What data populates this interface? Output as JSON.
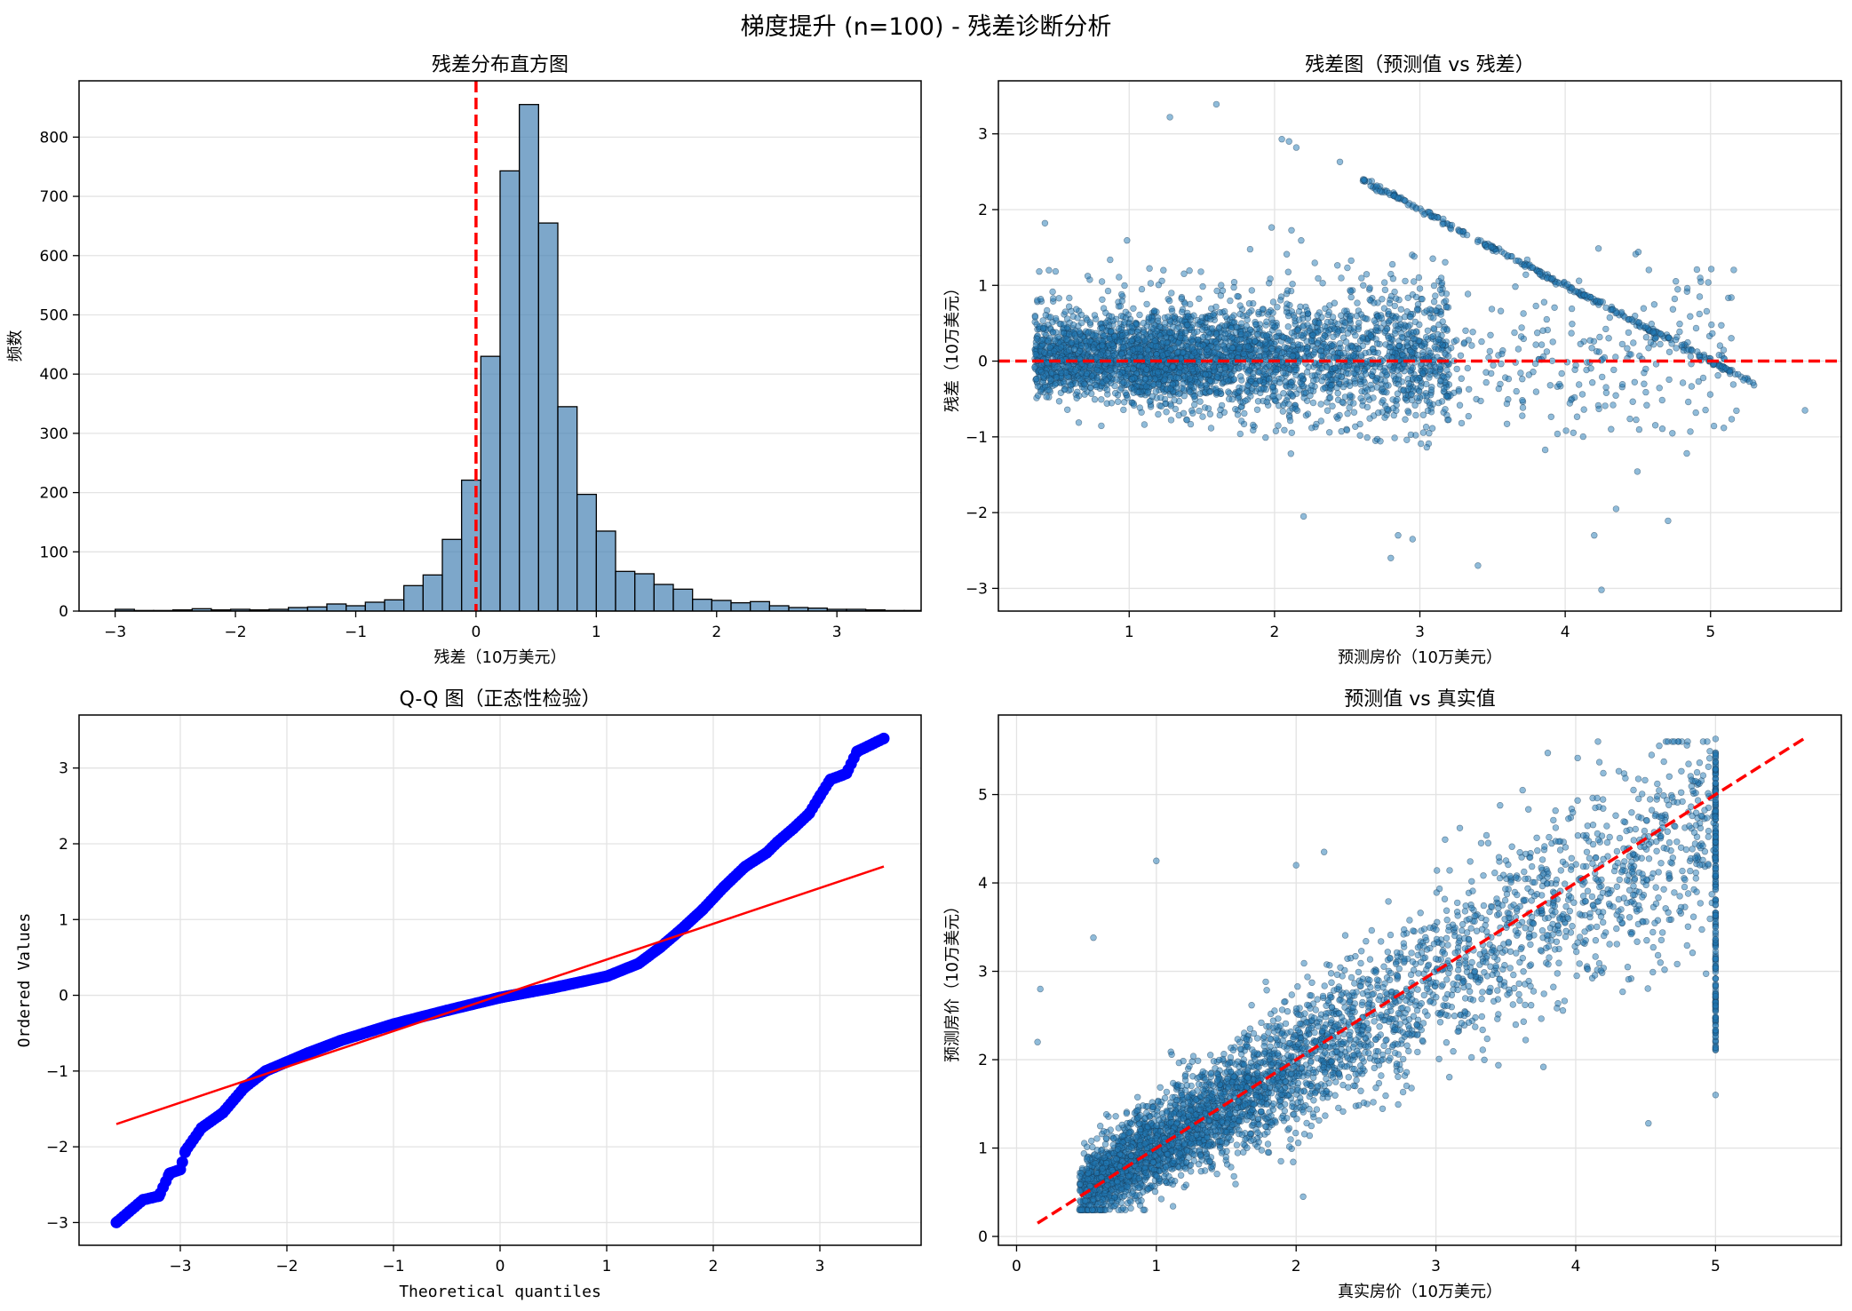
{
  "figure": {
    "suptitle": "梯度提升 (n=100) - 残差诊断分析"
  },
  "colors": {
    "steelblue": "#4682b4",
    "scatter": "#1f77b4",
    "red": "#ff0000",
    "qq_points": "#0000ff",
    "grid": "#e3e3e3"
  },
  "chart_data": [
    {
      "type": "bar",
      "title": "残差分布直方图",
      "xlabel": "残差（10万美元）",
      "ylabel": "频数",
      "xlim": [
        -3.3,
        3.7
      ],
      "ylim": [
        0,
        895
      ],
      "xticks": [
        -3,
        -2,
        -1,
        0,
        1,
        2,
        3
      ],
      "yticks": [
        0,
        100,
        200,
        300,
        400,
        500,
        600,
        700,
        800
      ],
      "grid": "y",
      "bin_start": -3.0,
      "bin_width": 0.16,
      "values": [
        3,
        1,
        1,
        2,
        4,
        2,
        3,
        2,
        3,
        6,
        7,
        12,
        9,
        15,
        19,
        43,
        61,
        121,
        221,
        430,
        743,
        855,
        655,
        345,
        197,
        135,
        67,
        63,
        45,
        37,
        20,
        18,
        14,
        16,
        9,
        6,
        5,
        3,
        3,
        2,
        1,
        1
      ],
      "reference_line": {
        "x": 0,
        "style": "dashed",
        "color": "red"
      }
    },
    {
      "type": "scatter",
      "title": "残差图（预测值 vs 残差）",
      "xlabel": "预测房价（10万美元）",
      "ylabel": "残差（10万美元）",
      "xlim": [
        0.1,
        5.9
      ],
      "ylim": [
        -3.3,
        3.7
      ],
      "xticks": [
        1,
        2,
        3,
        4,
        5
      ],
      "yticks": [
        -3,
        -2,
        -1,
        0,
        1,
        2,
        3
      ],
      "grid": true,
      "n_points": 4128,
      "outliers": [
        [
          1.28,
          3.22
        ],
        [
          1.6,
          3.39
        ],
        [
          2.05,
          2.93
        ],
        [
          2.1,
          2.9
        ],
        [
          2.15,
          2.82
        ],
        [
          2.45,
          2.63
        ],
        [
          0.42,
          1.82
        ],
        [
          2.2,
          -2.05
        ],
        [
          2.8,
          -2.6
        ],
        [
          2.85,
          -2.3
        ],
        [
          2.95,
          -2.35
        ],
        [
          3.4,
          -2.7
        ],
        [
          4.25,
          -3.02
        ],
        [
          4.2,
          -2.3
        ],
        [
          4.35,
          -1.95
        ],
        [
          5.65,
          -0.65
        ]
      ],
      "reference_line": {
        "y": 0,
        "style": "dashed",
        "color": "red"
      }
    },
    {
      "type": "scatter",
      "title": "Q-Q 图（正态性检验）",
      "xlabel": "Theoretical quantiles",
      "ylabel": "Ordered Values",
      "xlim": [
        -3.95,
        3.95
      ],
      "ylim": [
        -3.3,
        3.7
      ],
      "xticks": [
        -3,
        -2,
        -1,
        0,
        1,
        2,
        3
      ],
      "yticks": [
        -3,
        -2,
        -1,
        0,
        1,
        2,
        3
      ],
      "grid": true,
      "quantile_curve": [
        [
          -3.6,
          -3.0
        ],
        [
          -3.35,
          -2.7
        ],
        [
          -3.2,
          -2.65
        ],
        [
          -3.1,
          -2.35
        ],
        [
          -3.0,
          -2.3
        ],
        [
          -2.95,
          -2.05
        ],
        [
          -2.8,
          -1.75
        ],
        [
          -2.6,
          -1.55
        ],
        [
          -2.4,
          -1.22
        ],
        [
          -2.2,
          -1.0
        ],
        [
          -2.0,
          -0.88
        ],
        [
          -1.8,
          -0.76
        ],
        [
          -1.5,
          -0.6
        ],
        [
          -1.0,
          -0.38
        ],
        [
          -0.5,
          -0.2
        ],
        [
          0.0,
          -0.03
        ],
        [
          0.5,
          0.1
        ],
        [
          1.0,
          0.25
        ],
        [
          1.3,
          0.42
        ],
        [
          1.5,
          0.63
        ],
        [
          1.7,
          0.87
        ],
        [
          1.9,
          1.13
        ],
        [
          2.1,
          1.43
        ],
        [
          2.3,
          1.7
        ],
        [
          2.5,
          1.88
        ],
        [
          2.6,
          2.02
        ],
        [
          2.75,
          2.2
        ],
        [
          2.9,
          2.4
        ],
        [
          3.0,
          2.63
        ],
        [
          3.1,
          2.85
        ],
        [
          3.2,
          2.9
        ],
        [
          3.25,
          2.93
        ],
        [
          3.35,
          3.22
        ],
        [
          3.6,
          3.39
        ]
      ],
      "fit_line": {
        "x": [
          -3.6,
          3.6
        ],
        "y": [
          -1.7,
          1.7
        ],
        "color": "red"
      }
    },
    {
      "type": "scatter",
      "title": "预测值 vs 真实值",
      "xlabel": "真实房价（10万美元）",
      "ylabel": "预测房价（10万美元）",
      "xlim": [
        -0.13,
        5.9
      ],
      "ylim": [
        -0.1,
        5.9
      ],
      "xticks": [
        0,
        1,
        2,
        3,
        4,
        5
      ],
      "yticks": [
        0,
        1,
        2,
        3,
        4,
        5
      ],
      "grid": true,
      "n_points": 4128,
      "reference_line": {
        "x": [
          0.15,
          5.65
        ],
        "y": [
          0.15,
          5.65
        ],
        "style": "dashed",
        "color": "red"
      }
    }
  ]
}
